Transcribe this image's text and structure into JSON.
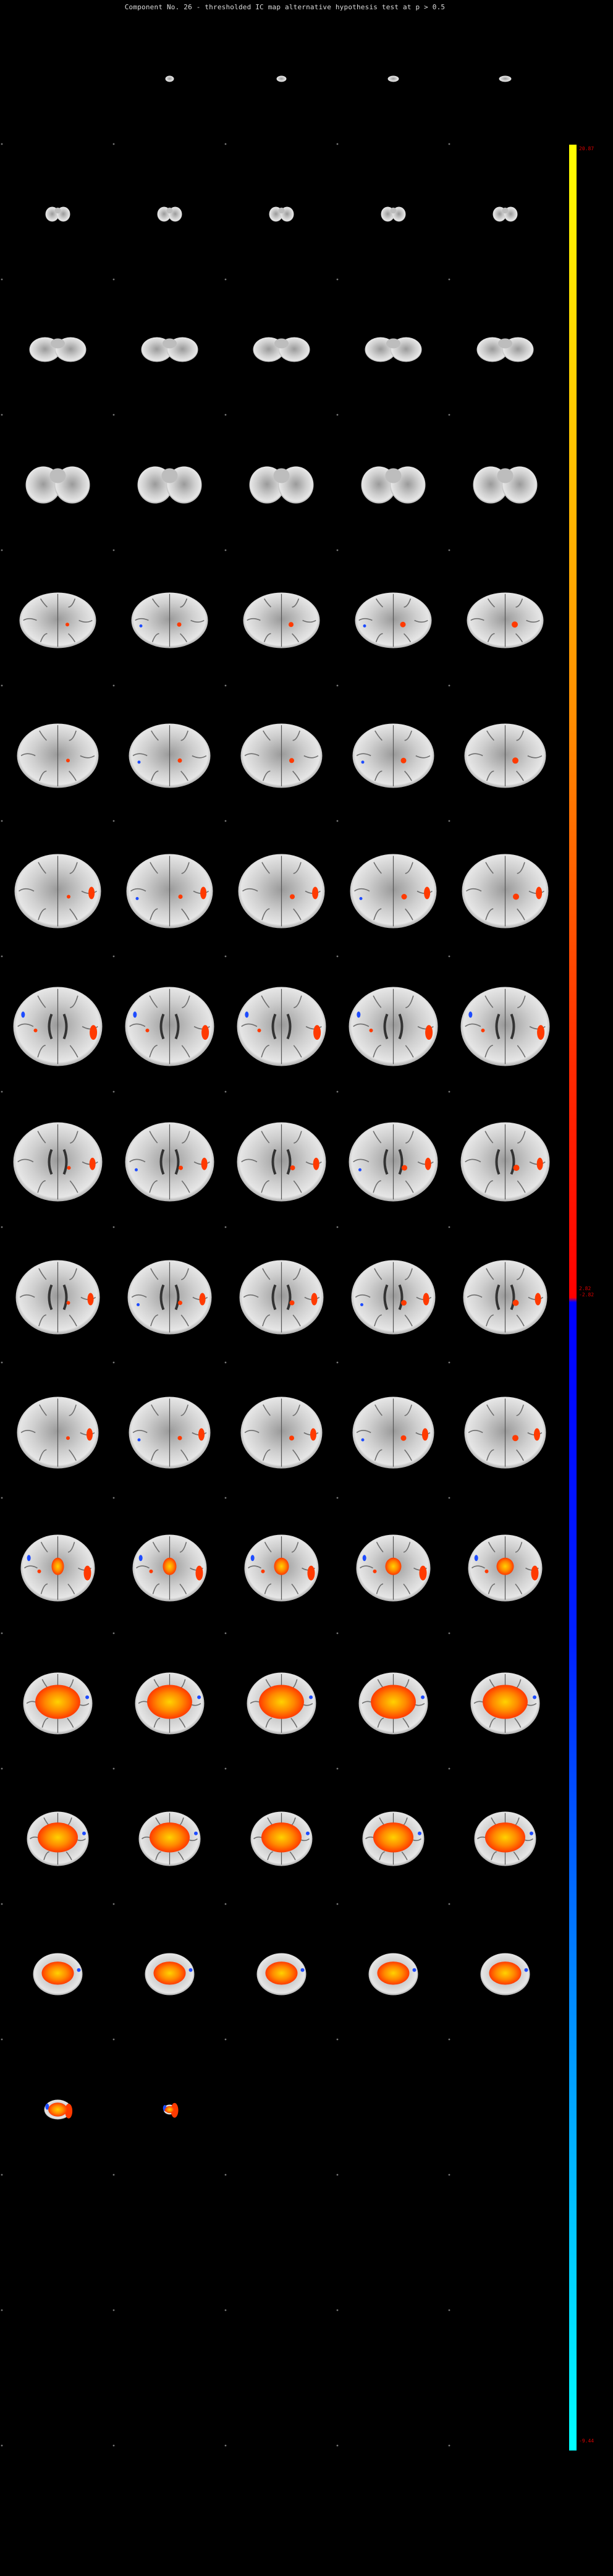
{
  "title": "Component No. 26 - thresholded IC map   alternative hypothesis test at p > 0.5",
  "colors": {
    "background": "#000000",
    "brain_light": "#e6e6e6",
    "brain_dark": "#6e6e6e",
    "positive": "#ff3a00",
    "positive_core": "#ffd200",
    "negative": "#1e4cff"
  },
  "colorbar": {
    "max_label": "20.87",
    "upper_threshold_label": "2.82",
    "lower_threshold_label": "-2.82",
    "min_label": "-9.44"
  },
  "grid": {
    "rows": 19,
    "cols": 5
  }
}
